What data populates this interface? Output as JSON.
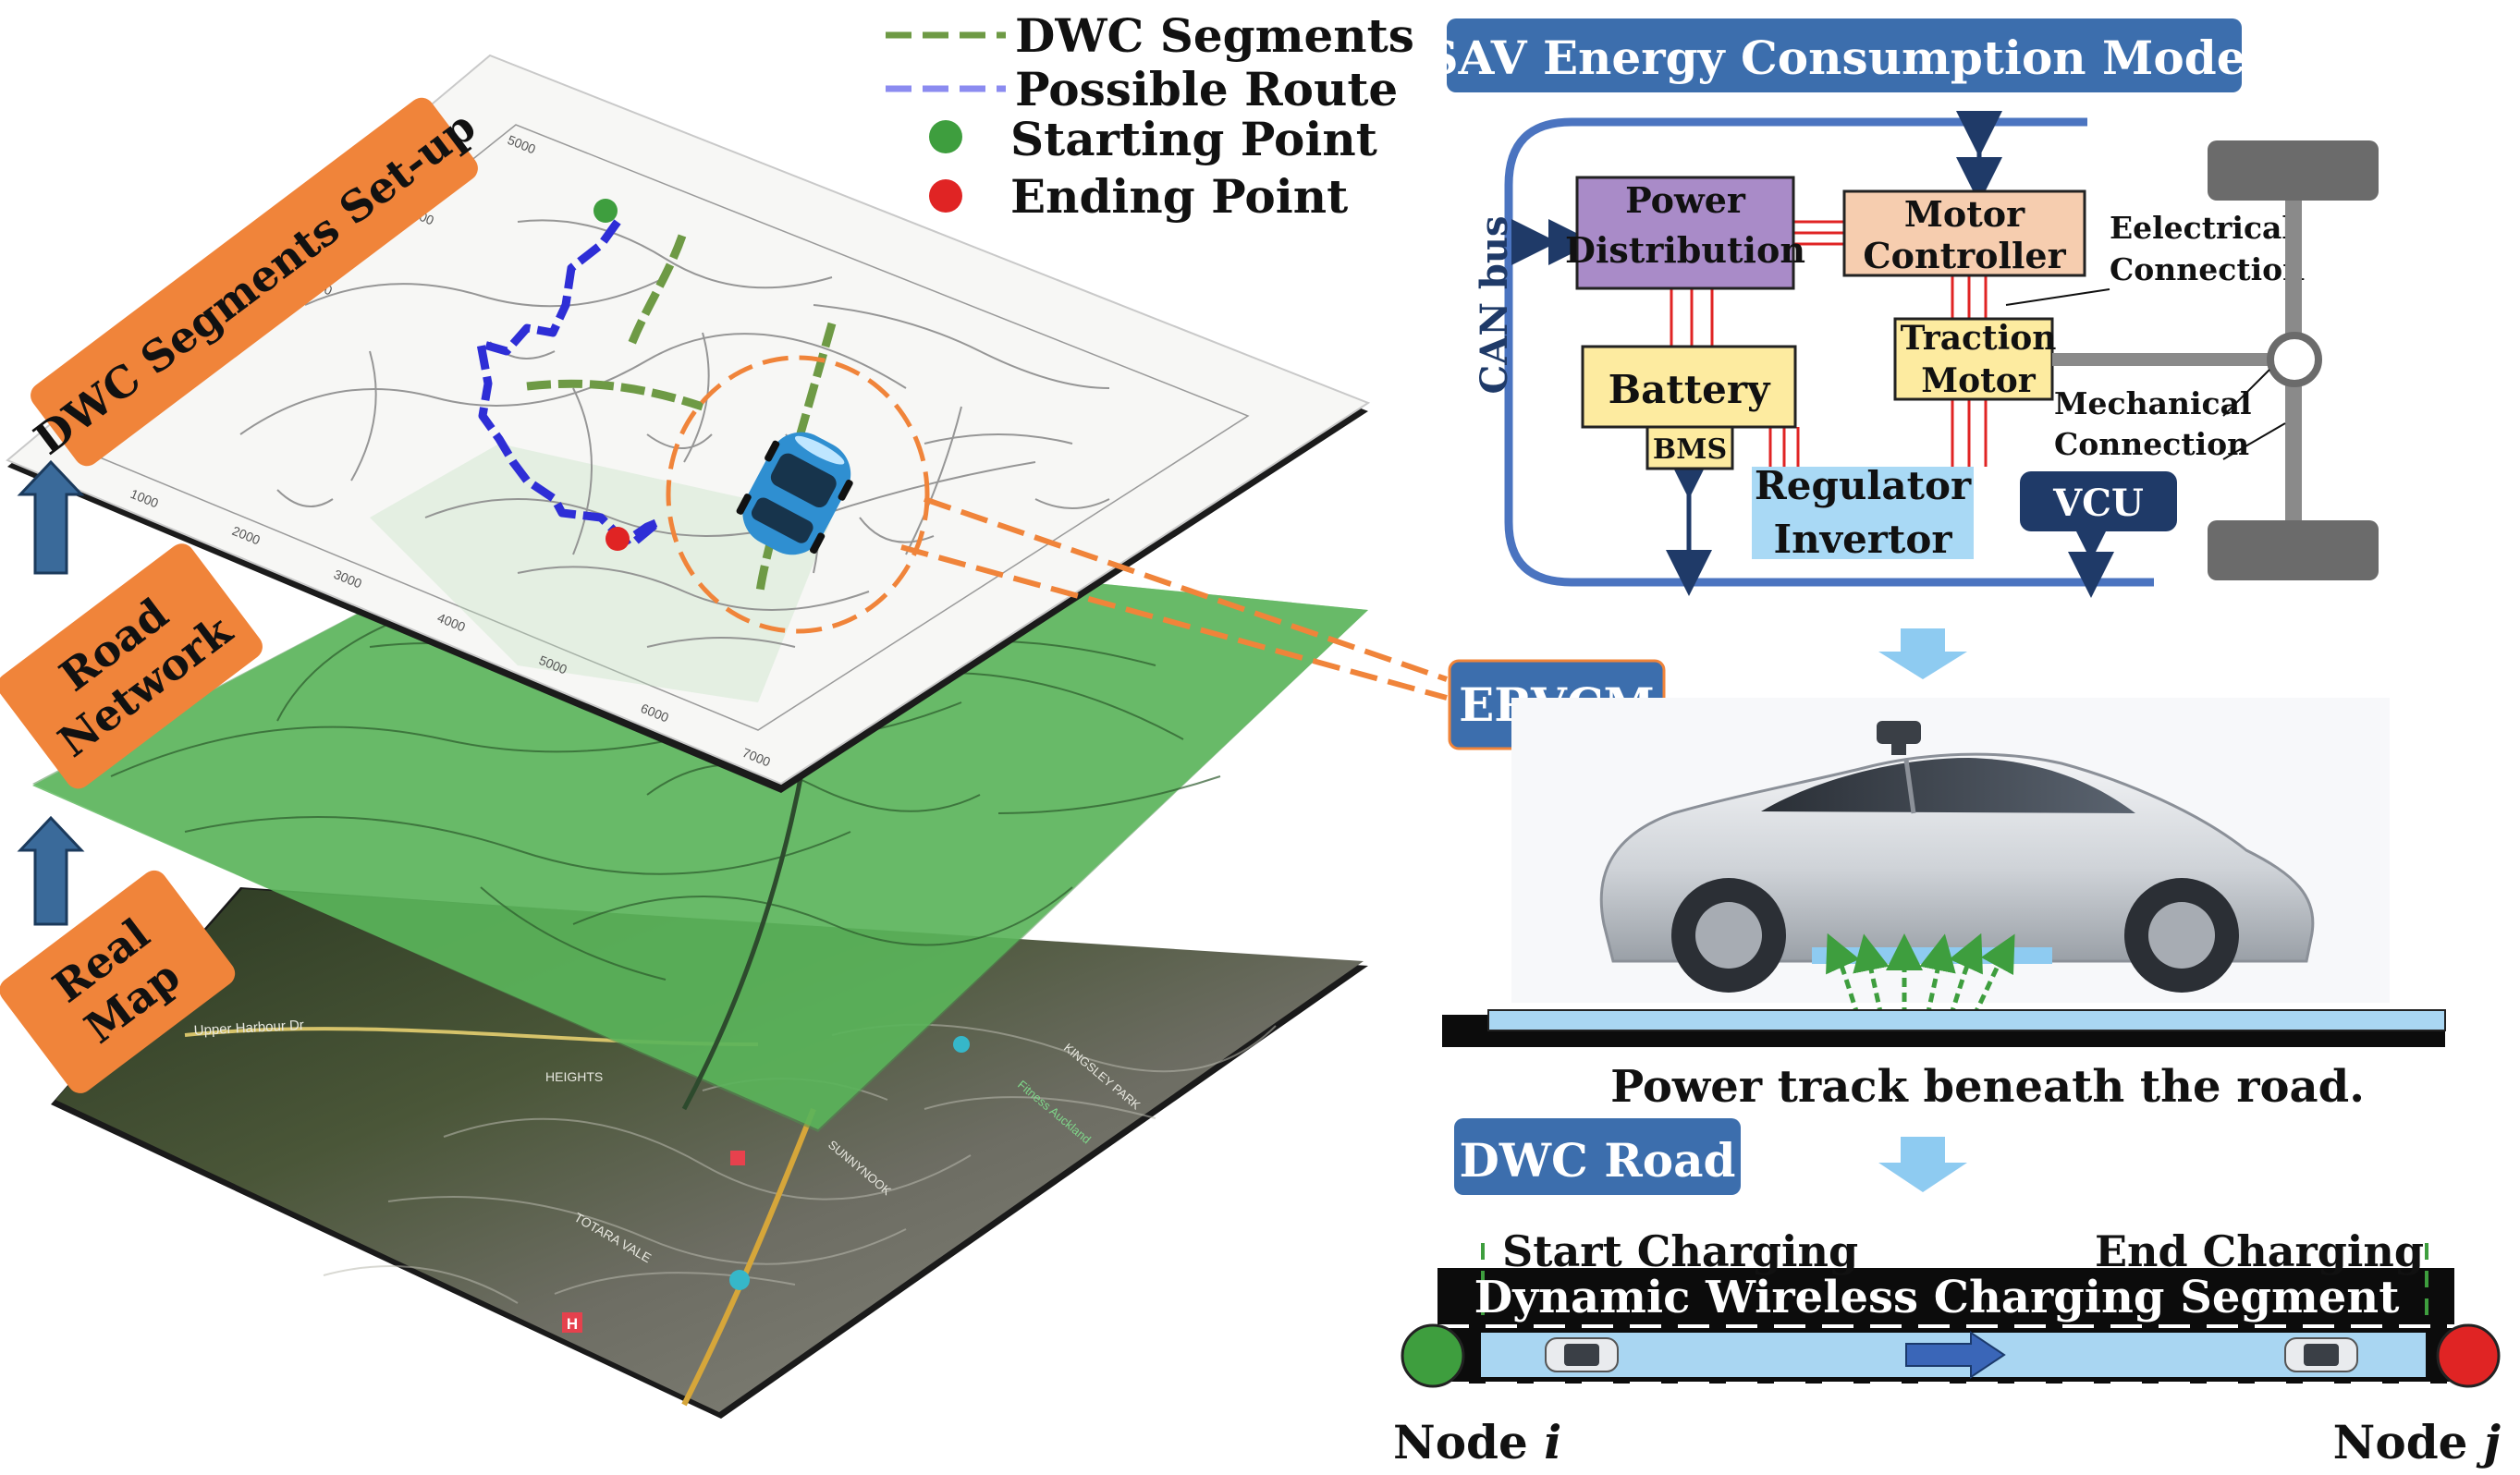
{
  "layers": {
    "dwc_setup": "DWC Segments Set-up",
    "road_network_line1": "Road",
    "road_network_line2": "Network",
    "real_map_line1": "Real",
    "real_map_line2": "Map"
  },
  "legend": {
    "dwc_segments": "DWC Segments",
    "possible_route": "Possible Route",
    "starting_point": "Starting Point",
    "ending_point": "Ending Point"
  },
  "map_axes": {
    "y_ticks": [
      "5000",
      "4000",
      "3000",
      "2000",
      "1000"
    ],
    "x_ticks": [
      "1000",
      "2000",
      "3000",
      "4000",
      "5000",
      "6000",
      "7000"
    ]
  },
  "real_map_labels": {
    "upper_harbour": "Upper Harbour Dr",
    "heights": "HEIGHTS",
    "totara_vale": "TOTARA VALE",
    "sunnynook": "SUNNYNOOK",
    "kingsley": "KINGSLEY PARK",
    "hospital": "H",
    "gym": "Fitness Auckland"
  },
  "model": {
    "title": "SAV Energy Consumption Model",
    "can_bus": "CAN bus",
    "power_distribution_line1": "Power",
    "power_distribution_line2": "Distribution",
    "motor_controller_line1": "Motor",
    "motor_controller_line2": "Controller",
    "electrical_connection_line1": "Eelectrical",
    "electrical_connection_line2": "Connection",
    "traction_motor_line1": "Traction",
    "traction_motor_line2": "Motor",
    "battery": "Battery",
    "bms": "BMS",
    "mechanical_connection_line1": "Mechanical",
    "mechanical_connection_line2": "Connection",
    "regulator_line1": "Regulator",
    "regulator_line2": "Invertor",
    "vcu": "VCU"
  },
  "ervcm": "ERVCM",
  "power_track_caption": "Power track beneath the road.",
  "dwc_road": {
    "title": "DWC Road",
    "start_charging": "Start Charging",
    "end_charging": "End Charging",
    "segment": "Dynamic Wireless Charging Segment",
    "node_i_prefix": "Node ",
    "node_i_var": "i",
    "node_j_prefix": "Node ",
    "node_j_var": "j"
  },
  "colors": {
    "orange_label": "#F0843A",
    "blue_label": "#3C6EAD",
    "dwc_green": "#6E9A45",
    "route_blue": "#2E2ED6",
    "start_green": "#3E9E3E",
    "end_red": "#E02424",
    "road_green": "#5BB85B",
    "track_blue": "#A9D6F2",
    "power_purple": "#A98BC8",
    "motor_peach": "#F6CDAF",
    "battery_yellow": "#FDEBA0",
    "regulator_blue": "#A9D9F5",
    "vcu_navy": "#1F3A68"
  }
}
